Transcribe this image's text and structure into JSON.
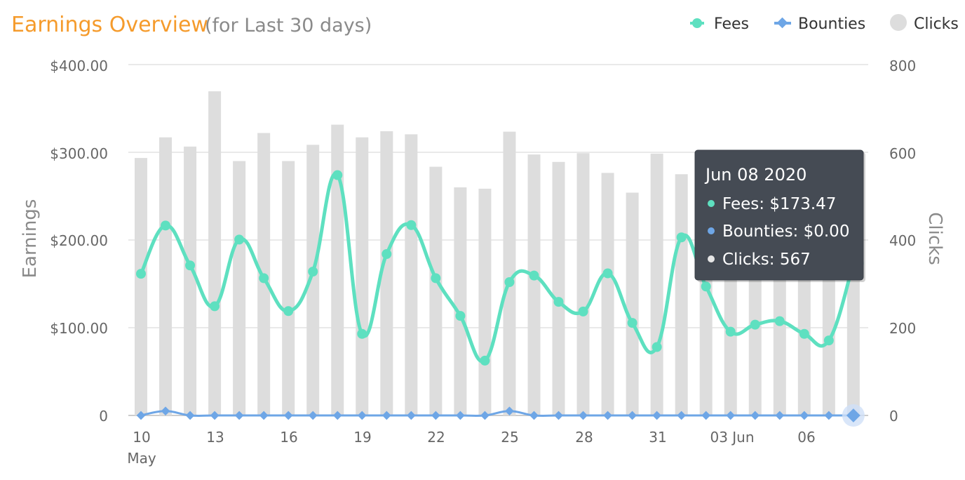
{
  "chart_data": {
    "type": "bar",
    "title": "Earnings Overview",
    "subtitle": "(for Last 30 days)",
    "ylabel": "Earnings",
    "ylabel_right": "Clicks",
    "ylim": [
      0,
      400
    ],
    "ylim_right": [
      0,
      800
    ],
    "y_ticks": [
      "$400.00",
      "$300.00",
      "$200.00",
      "$100.00",
      "0"
    ],
    "y_ticks_right": [
      "800",
      "600",
      "400",
      "200",
      "0"
    ],
    "x_ticks": [
      "10",
      "13",
      "16",
      "19",
      "22",
      "25",
      "28",
      "31",
      "03 Jun",
      "06"
    ],
    "x_tick_month": "May",
    "legend_position": "top-right",
    "grid": true,
    "categories": [
      "2020-05-10",
      "2020-05-11",
      "2020-05-12",
      "2020-05-13",
      "2020-05-14",
      "2020-05-15",
      "2020-05-16",
      "2020-05-17",
      "2020-05-18",
      "2020-05-19",
      "2020-05-20",
      "2020-05-21",
      "2020-05-22",
      "2020-05-23",
      "2020-05-24",
      "2020-05-25",
      "2020-05-26",
      "2020-05-27",
      "2020-05-28",
      "2020-05-29",
      "2020-05-30",
      "2020-05-31",
      "2020-06-01",
      "2020-06-02",
      "2020-06-03",
      "2020-06-04",
      "2020-06-05",
      "2020-06-06",
      "2020-06-07",
      "2020-06-08"
    ],
    "series": [
      {
        "name": "Fees",
        "type": "line",
        "axis": "left",
        "color": "#5ee0c0",
        "values": [
          161.5,
          216.5,
          171,
          124.5,
          200.5,
          156.5,
          119,
          164,
          274,
          93,
          184,
          217,
          156.5,
          113.5,
          62.5,
          152,
          159.5,
          129.5,
          118.5,
          162,
          105.5,
          78,
          203,
          147,
          95.5,
          103.5,
          107.5,
          93,
          85.5,
          173.47
        ]
      },
      {
        "name": "Bounties",
        "type": "line",
        "axis": "left",
        "color": "#6ea6e6",
        "values": [
          0,
          5,
          0,
          0,
          0,
          0,
          0,
          0,
          0,
          0,
          0,
          0,
          0,
          0,
          0,
          5,
          0,
          0,
          0,
          0,
          0,
          0,
          0,
          0,
          0,
          0,
          0,
          0,
          0,
          0
        ]
      },
      {
        "name": "Clicks",
        "type": "bar",
        "axis": "right",
        "color": "#dddddd",
        "values": [
          587,
          634,
          613,
          739,
          580,
          644,
          580,
          617,
          663,
          634,
          648,
          641,
          567,
          520,
          517,
          647,
          595,
          578,
          598,
          553,
          508,
          597,
          550,
          571,
          570,
          568,
          569,
          566,
          568,
          567
        ]
      }
    ],
    "tooltip": {
      "title": "Jun 08 2020",
      "rows": [
        {
          "label": "Fees: $173.47",
          "color": "#5ee0c0"
        },
        {
          "label": "Bounties: $0.00",
          "color": "#6ea6e6"
        },
        {
          "label": "Clicks: 567",
          "color": "#e6e6e6"
        }
      ],
      "active_index": 29
    },
    "colors": {
      "title": "#f59b2c",
      "subtitle": "#8a8a8a",
      "axis_text": "#666666",
      "grid": "#e2e2e2",
      "tooltip_bg": "#454b54"
    }
  }
}
